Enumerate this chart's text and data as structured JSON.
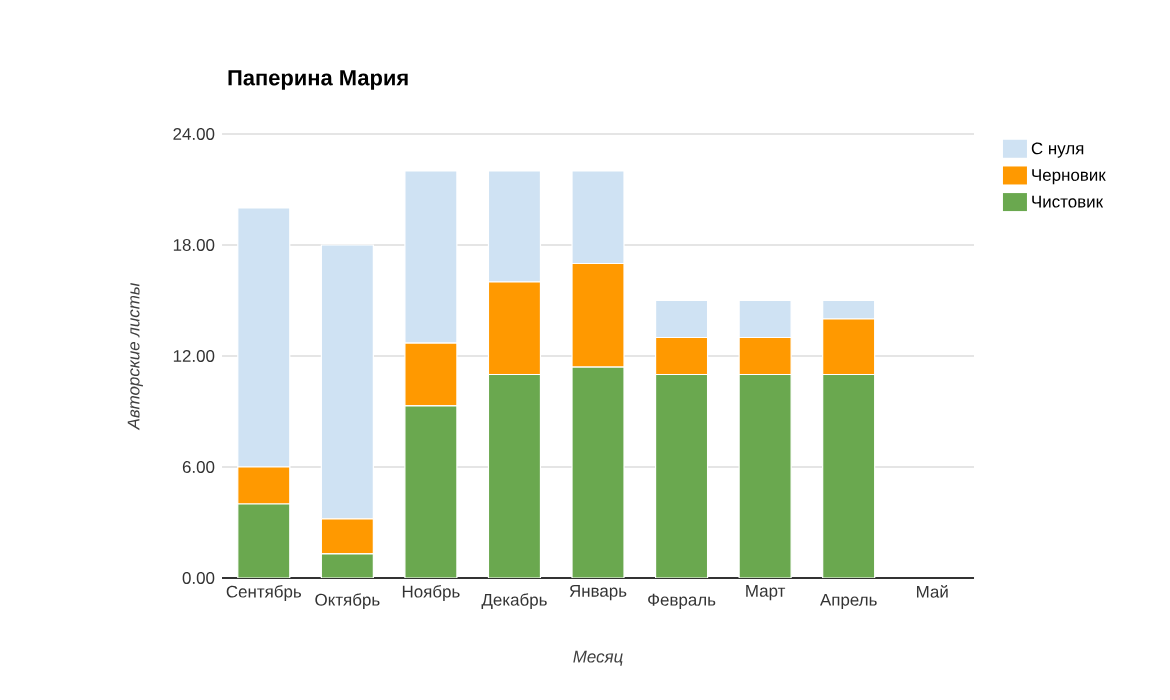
{
  "chart_data": {
    "type": "bar",
    "title": "Паперина Мария",
    "xlabel": "Месяц",
    "ylabel": "Авторские листы",
    "categories": [
      "Сентябрь",
      "Октябрь",
      "Ноябрь",
      "Декабрь",
      "Январь",
      "Февраль",
      "Март",
      "Апрель",
      "Май"
    ],
    "stacked": true,
    "series": [
      {
        "name": "Чистовик",
        "color": "#6aa84f",
        "values": [
          4,
          1.3,
          9.3,
          11,
          11.4,
          11,
          11,
          11,
          null
        ]
      },
      {
        "name": "Черновик",
        "color": "#ff9900",
        "values": [
          2,
          1.9,
          3.4,
          5,
          5.6,
          2,
          2,
          3,
          null
        ]
      },
      {
        "name": "С нуля",
        "color": "#cfe2f3",
        "values": [
          14,
          14.8,
          9.3,
          6,
          5,
          2,
          2,
          1,
          null
        ]
      }
    ],
    "ylim": [
      0,
      24
    ],
    "yticks": [
      {
        "value": 0,
        "label": "0.00"
      },
      {
        "value": 6,
        "label": "6.00"
      },
      {
        "value": 12,
        "label": "12.00"
      },
      {
        "value": 18,
        "label": "18.00"
      },
      {
        "value": 24,
        "label": "24.00"
      }
    ],
    "grid": "y",
    "legend": "right"
  }
}
